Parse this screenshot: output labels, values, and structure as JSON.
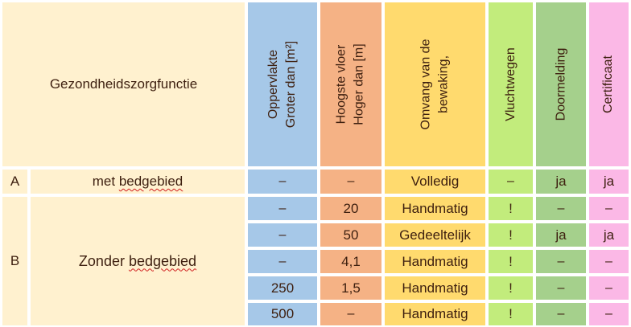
{
  "header": {
    "function_label": "Gezondheidszorgfunctie",
    "col_area": [
      "Oppervlakte",
      "Groter dan [m²]"
    ],
    "col_floor": [
      "Hoogste vloer",
      "Hoger dan [m]"
    ],
    "col_monitoring": [
      "Omvang van de",
      "bewaking,"
    ],
    "col_escape": "Vluchtwegen",
    "col_alarm": "Doormelding",
    "col_certificate": "Certificaat"
  },
  "groups": {
    "a": {
      "code": "A",
      "name_prefix": "met ",
      "name_word": "bedgebied"
    },
    "b": {
      "code": "B",
      "name_prefix": "Zonder ",
      "name_word": "bedgebied"
    }
  },
  "rows": [
    {
      "area": "–",
      "floor": "–",
      "monitoring": "Volledig",
      "escape": "–",
      "alarm": "ja",
      "certificate": "ja"
    },
    {
      "area": "–",
      "floor": "20",
      "monitoring": "Handmatig",
      "escape": "!",
      "alarm": "–",
      "certificate": "–"
    },
    {
      "area": "–",
      "floor": "50",
      "monitoring": "Gedeeltelijk",
      "escape": "!",
      "alarm": "ja",
      "certificate": "ja"
    },
    {
      "area": "–",
      "floor": "4,1",
      "monitoring": "Handmatig",
      "escape": "!",
      "alarm": "–",
      "certificate": "–"
    },
    {
      "area": "250",
      "floor": "1,5",
      "monitoring": "Handmatig",
      "escape": "!",
      "alarm": "–",
      "certificate": "–"
    },
    {
      "area": "500",
      "floor": "–",
      "monitoring": "Handmatig",
      "escape": "!",
      "alarm": "–",
      "certificate": "–"
    }
  ],
  "colors": {
    "cream": "#fff1cf",
    "blue": "#a6c8e8",
    "orange": "#f5b285",
    "yellow": "#ffda6e",
    "light_green": "#c2ec7c",
    "dark_green": "#a5d08c",
    "pink": "#fbb8e6"
  }
}
